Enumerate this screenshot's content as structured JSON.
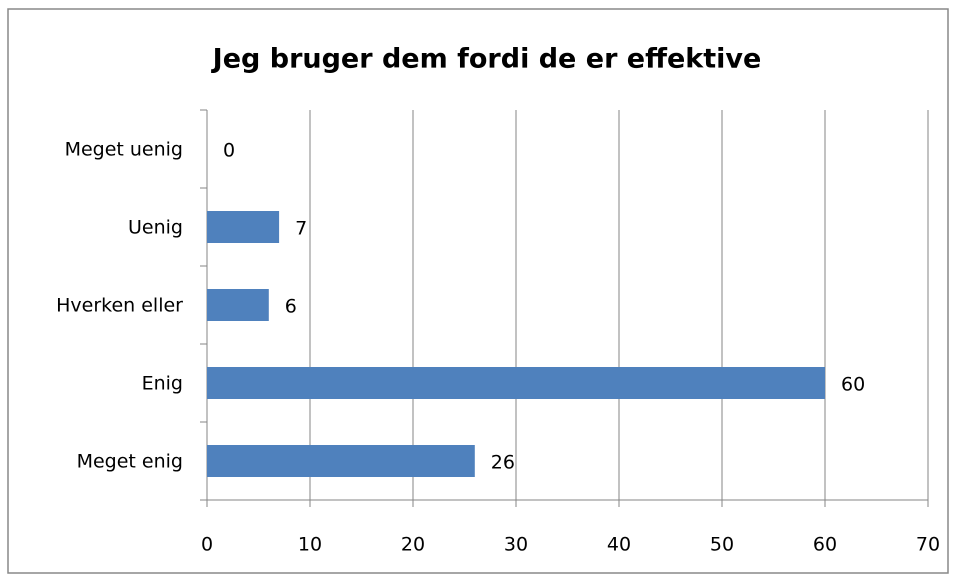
{
  "chart_data": {
    "type": "bar",
    "orientation": "horizontal",
    "title": "Jeg bruger dem fordi de er effektive",
    "categories": [
      "Meget uenig",
      "Uenig",
      "Hverken eller",
      "Enig",
      "Meget enig"
    ],
    "values": [
      0,
      7,
      6,
      60,
      26
    ],
    "color": "#4f81bd",
    "xlim": [
      0,
      70
    ],
    "xticks": [
      0,
      10,
      20,
      30,
      40,
      50,
      60,
      70
    ],
    "grid": true
  }
}
